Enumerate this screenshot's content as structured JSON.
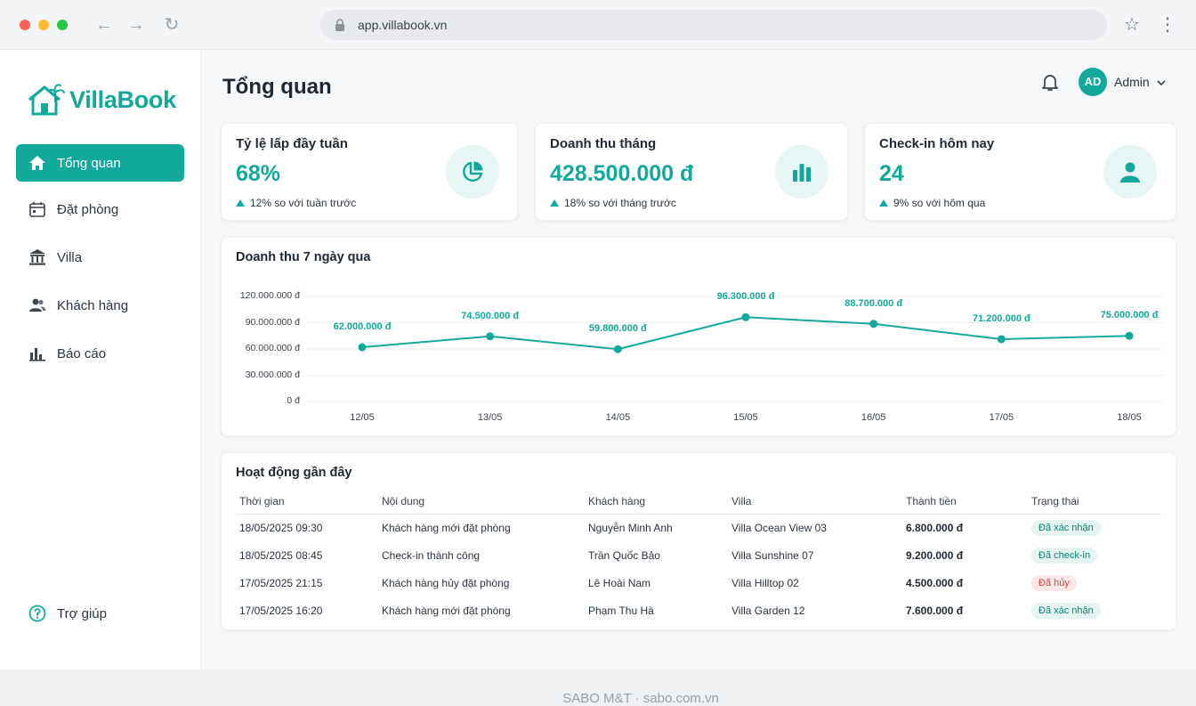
{
  "browser": {
    "url": "app.villabook.vn"
  },
  "app": {
    "logo": "VillaBook",
    "accent": "#13a99a"
  },
  "sidebar": {
    "items": [
      {
        "label": "Tổng quan",
        "icon": "home-icon",
        "active": true
      },
      {
        "label": "Đặt phòng",
        "icon": "calendar-icon"
      },
      {
        "label": "Villa",
        "icon": "building-icon"
      },
      {
        "label": "Khách hàng",
        "icon": "users-icon"
      },
      {
        "label": "Báo cáo",
        "icon": "bar-chart-icon"
      }
    ],
    "help": "Trợ giúp"
  },
  "header": {
    "title": "Tổng quan",
    "avatar_initials": "AD",
    "user": "Admin"
  },
  "stats": [
    {
      "title": "Tỷ lệ lấp đầy tuần",
      "value": "68%",
      "change": "12% so với tuần trước",
      "icon": "pie-chart-icon"
    },
    {
      "title": "Doanh thu tháng",
      "value": "428.500.000 đ",
      "change": "18% so với tháng trước",
      "icon": "bar-chart-icon"
    },
    {
      "title": "Check-in hôm nay",
      "value": "24",
      "change": "9% so với hôm qua",
      "icon": "user-icon"
    }
  ],
  "chart_title": "Doanh thu 7 ngày qua",
  "chart_data": {
    "type": "line",
    "x": [
      "12/05",
      "13/05",
      "14/05",
      "15/05",
      "16/05",
      "17/05",
      "18/05"
    ],
    "values": [
      62000000,
      74500000,
      59800000,
      96300000,
      88700000,
      71200000,
      75000000
    ],
    "labels": [
      "62.000.000 đ",
      "74.500.000 đ",
      "59.800.000 đ",
      "96.300.000 đ",
      "88.700.000 đ",
      "71.200.000 đ",
      "75.000.000 đ"
    ],
    "yticks": [
      "120.000.000 đ",
      "90.000.000 đ",
      "60.000.000 đ",
      "30.000.000 đ",
      "0 đ"
    ],
    "ylim": [
      0,
      120000000
    ],
    "grid": true,
    "color": "#13a99a"
  },
  "activity": {
    "title": "Hoạt động gần đây",
    "columns": [
      "Thời gian",
      "Nội dung",
      "Khách hàng",
      "Villa",
      "Thành tiền",
      "Trạng thái"
    ],
    "rows": [
      [
        "18/05/2025 09:30",
        "Khách hàng mới đặt phòng",
        "Nguyễn Minh Anh",
        "Villa Ocean View 03",
        "6.800.000 đ",
        "Đã xác nhận"
      ],
      [
        "18/05/2025 08:45",
        "Check-in thành công",
        "Trần Quốc Bảo",
        "Villa Sunshine 07",
        "9.200.000 đ",
        "Đã check-in"
      ],
      [
        "17/05/2025 21:15",
        "Khách hàng hủy đặt phòng",
        "Lê Hoài Nam",
        "Villa Hilltop 02",
        "4.500.000 đ",
        "Đã hủy"
      ],
      [
        "17/05/2025 16:20",
        "Khách hàng mới đặt phòng",
        "Phạm Thu Hà",
        "Villa Garden 12",
        "7.600.000 đ",
        "Đã xác nhận"
      ]
    ],
    "status_colors": {
      "Đã xác nhận": "#e3f4f1",
      "Đã check-in": "#e3f4f1",
      "Đã hủy": "#fde7e7"
    }
  },
  "footer": "SABO M&T · sabo.com.vn"
}
